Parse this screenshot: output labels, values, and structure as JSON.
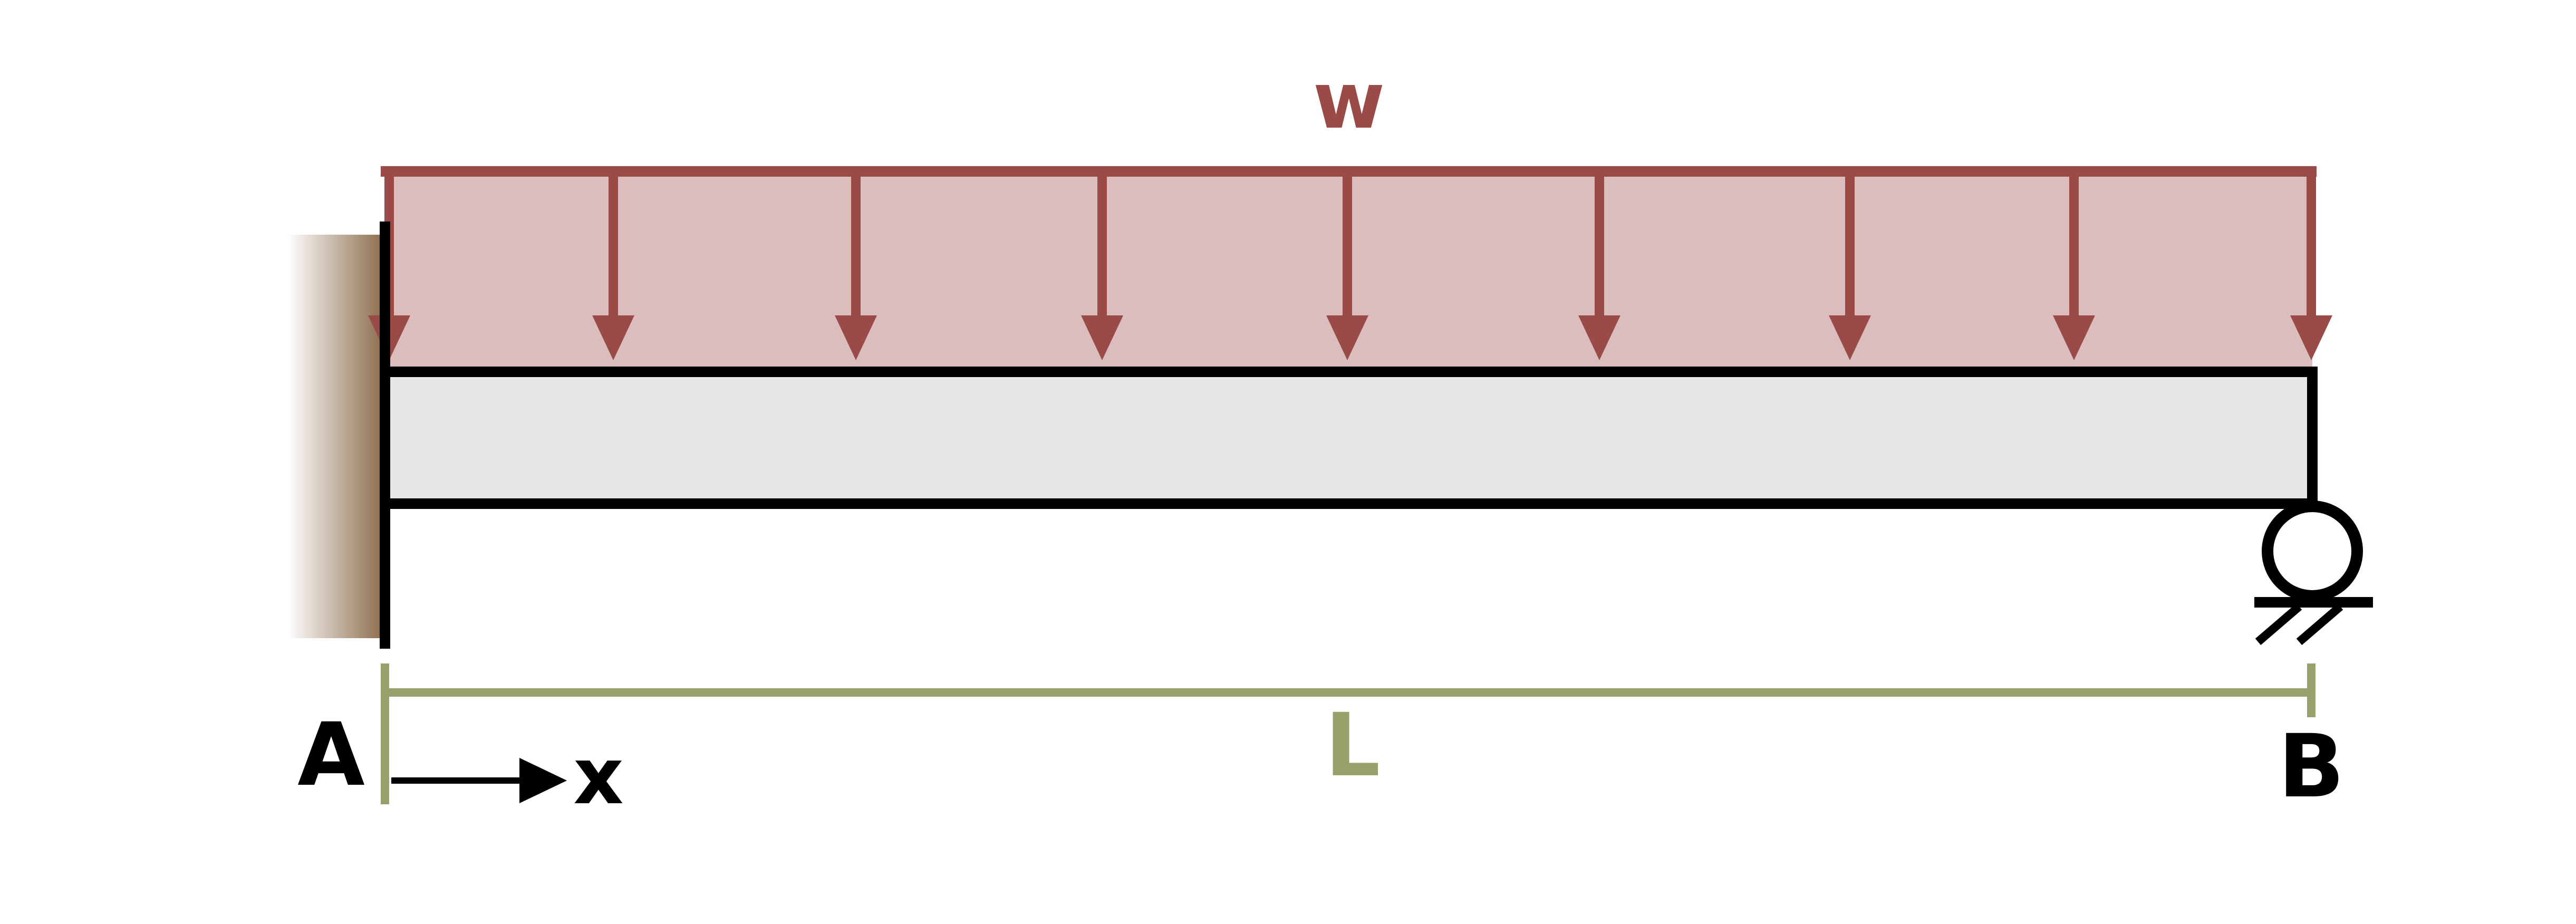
{
  "labels": {
    "load": "w",
    "span": "L",
    "left_end": "A",
    "right_end": "B",
    "axis": "x"
  },
  "colors": {
    "load_stroke": "#9a4a47",
    "load_fill": "#dbbdbd",
    "beam_fill": "#e6e6e6",
    "beam_stroke": "#000000",
    "dimension": "#99a06c",
    "wall_dark": "#8b6b4a"
  },
  "load": {
    "type": "uniformly distributed",
    "arrow_count": 9
  }
}
